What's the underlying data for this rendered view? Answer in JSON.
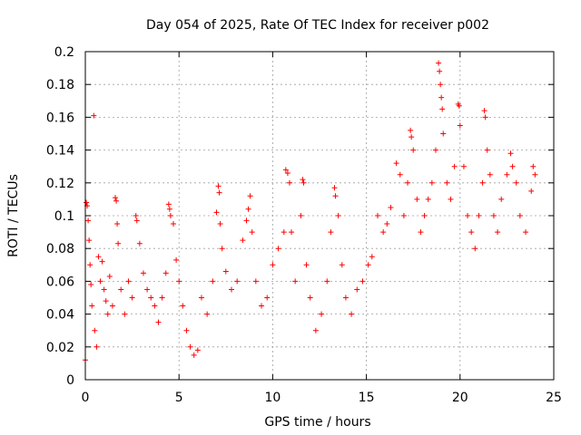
{
  "chart_data": {
    "type": "scatter",
    "title": "Day 054 of 2025, Rate Of TEC Index for receiver p002",
    "xlabel": "GPS time / hours",
    "ylabel": "ROTI / TECUs",
    "xlim": [
      0,
      25
    ],
    "ylim": [
      0,
      0.2
    ],
    "xticks": [
      0,
      5,
      10,
      15,
      20,
      25
    ],
    "xtick_labels": [
      "0",
      "5",
      "10",
      "15",
      "20",
      "25"
    ],
    "yticks": [
      0,
      0.02,
      0.04,
      0.06,
      0.08,
      0.1,
      0.12,
      0.14,
      0.16,
      0.18,
      0.2
    ],
    "ytick_labels": [
      "0",
      "0.02",
      "0.04",
      "0.06",
      "0.08",
      "0.1",
      "0.12",
      "0.14",
      "0.16",
      "0.18",
      "0.2"
    ],
    "grid": true,
    "marker": "plus",
    "color": "#ff0000",
    "series": [
      {
        "points": [
          [
            0.0,
            0.012
          ],
          [
            0.05,
            0.108
          ],
          [
            0.1,
            0.106
          ],
          [
            0.15,
            0.097
          ],
          [
            0.2,
            0.085
          ],
          [
            0.25,
            0.07
          ],
          [
            0.3,
            0.058
          ],
          [
            0.35,
            0.045
          ],
          [
            0.45,
            0.161
          ],
          [
            0.5,
            0.03
          ],
          [
            0.6,
            0.02
          ],
          [
            0.7,
            0.075
          ],
          [
            0.8,
            0.06
          ],
          [
            0.9,
            0.072
          ],
          [
            1.0,
            0.055
          ],
          [
            1.1,
            0.048
          ],
          [
            1.2,
            0.04
          ],
          [
            1.3,
            0.063
          ],
          [
            1.45,
            0.045
          ],
          [
            1.6,
            0.111
          ],
          [
            1.65,
            0.109
          ],
          [
            1.7,
            0.095
          ],
          [
            1.75,
            0.083
          ],
          [
            1.9,
            0.055
          ],
          [
            2.1,
            0.04
          ],
          [
            2.3,
            0.06
          ],
          [
            2.5,
            0.05
          ],
          [
            2.7,
            0.1
          ],
          [
            2.75,
            0.097
          ],
          [
            2.9,
            0.083
          ],
          [
            3.1,
            0.065
          ],
          [
            3.3,
            0.055
          ],
          [
            3.5,
            0.05
          ],
          [
            3.7,
            0.045
          ],
          [
            3.9,
            0.035
          ],
          [
            4.1,
            0.05
          ],
          [
            4.3,
            0.065
          ],
          [
            4.45,
            0.107
          ],
          [
            4.5,
            0.104
          ],
          [
            4.55,
            0.1
          ],
          [
            4.7,
            0.095
          ],
          [
            4.85,
            0.073
          ],
          [
            5.0,
            0.06
          ],
          [
            5.2,
            0.045
          ],
          [
            5.4,
            0.03
          ],
          [
            5.6,
            0.02
          ],
          [
            5.8,
            0.015
          ],
          [
            6.0,
            0.018
          ],
          [
            6.2,
            0.05
          ],
          [
            6.5,
            0.04
          ],
          [
            6.8,
            0.06
          ],
          [
            7.0,
            0.102
          ],
          [
            7.1,
            0.118
          ],
          [
            7.15,
            0.114
          ],
          [
            7.2,
            0.095
          ],
          [
            7.3,
            0.08
          ],
          [
            7.5,
            0.066
          ],
          [
            7.8,
            0.055
          ],
          [
            8.1,
            0.06
          ],
          [
            8.4,
            0.085
          ],
          [
            8.6,
            0.097
          ],
          [
            8.7,
            0.104
          ],
          [
            8.8,
            0.112
          ],
          [
            8.9,
            0.09
          ],
          [
            9.1,
            0.06
          ],
          [
            9.4,
            0.045
          ],
          [
            9.7,
            0.05
          ],
          [
            10.0,
            0.07
          ],
          [
            10.3,
            0.08
          ],
          [
            10.6,
            0.09
          ],
          [
            10.7,
            0.128
          ],
          [
            10.8,
            0.126
          ],
          [
            10.9,
            0.12
          ],
          [
            11.0,
            0.09
          ],
          [
            11.2,
            0.06
          ],
          [
            11.5,
            0.1
          ],
          [
            11.6,
            0.122
          ],
          [
            11.65,
            0.12
          ],
          [
            11.8,
            0.07
          ],
          [
            12.0,
            0.05
          ],
          [
            12.3,
            0.03
          ],
          [
            12.6,
            0.04
          ],
          [
            12.9,
            0.06
          ],
          [
            13.1,
            0.09
          ],
          [
            13.3,
            0.117
          ],
          [
            13.35,
            0.112
          ],
          [
            13.5,
            0.1
          ],
          [
            13.7,
            0.07
          ],
          [
            13.9,
            0.05
          ],
          [
            14.2,
            0.04
          ],
          [
            14.5,
            0.055
          ],
          [
            14.8,
            0.06
          ],
          [
            15.1,
            0.07
          ],
          [
            15.3,
            0.075
          ],
          [
            15.6,
            0.1
          ],
          [
            15.9,
            0.09
          ],
          [
            16.1,
            0.095
          ],
          [
            16.3,
            0.105
          ],
          [
            16.6,
            0.132
          ],
          [
            16.8,
            0.125
          ],
          [
            17.0,
            0.1
          ],
          [
            17.2,
            0.12
          ],
          [
            17.35,
            0.152
          ],
          [
            17.4,
            0.148
          ],
          [
            17.5,
            0.14
          ],
          [
            17.7,
            0.11
          ],
          [
            17.9,
            0.09
          ],
          [
            18.1,
            0.1
          ],
          [
            18.3,
            0.11
          ],
          [
            18.5,
            0.12
          ],
          [
            18.7,
            0.14
          ],
          [
            18.85,
            0.193
          ],
          [
            18.9,
            0.188
          ],
          [
            18.95,
            0.18
          ],
          [
            19.0,
            0.172
          ],
          [
            19.05,
            0.165
          ],
          [
            19.1,
            0.15
          ],
          [
            19.3,
            0.12
          ],
          [
            19.5,
            0.11
          ],
          [
            19.7,
            0.13
          ],
          [
            19.9,
            0.168
          ],
          [
            19.95,
            0.167
          ],
          [
            20.0,
            0.155
          ],
          [
            20.2,
            0.13
          ],
          [
            20.4,
            0.1
          ],
          [
            20.6,
            0.09
          ],
          [
            20.8,
            0.08
          ],
          [
            21.0,
            0.1
          ],
          [
            21.2,
            0.12
          ],
          [
            21.3,
            0.164
          ],
          [
            21.35,
            0.16
          ],
          [
            21.45,
            0.14
          ],
          [
            21.6,
            0.125
          ],
          [
            21.8,
            0.1
          ],
          [
            22.0,
            0.09
          ],
          [
            22.2,
            0.11
          ],
          [
            22.5,
            0.125
          ],
          [
            22.7,
            0.138
          ],
          [
            22.8,
            0.13
          ],
          [
            23.0,
            0.12
          ],
          [
            23.2,
            0.1
          ],
          [
            23.5,
            0.09
          ],
          [
            23.8,
            0.115
          ],
          [
            23.9,
            0.13
          ],
          [
            24.0,
            0.125
          ]
        ]
      }
    ]
  }
}
